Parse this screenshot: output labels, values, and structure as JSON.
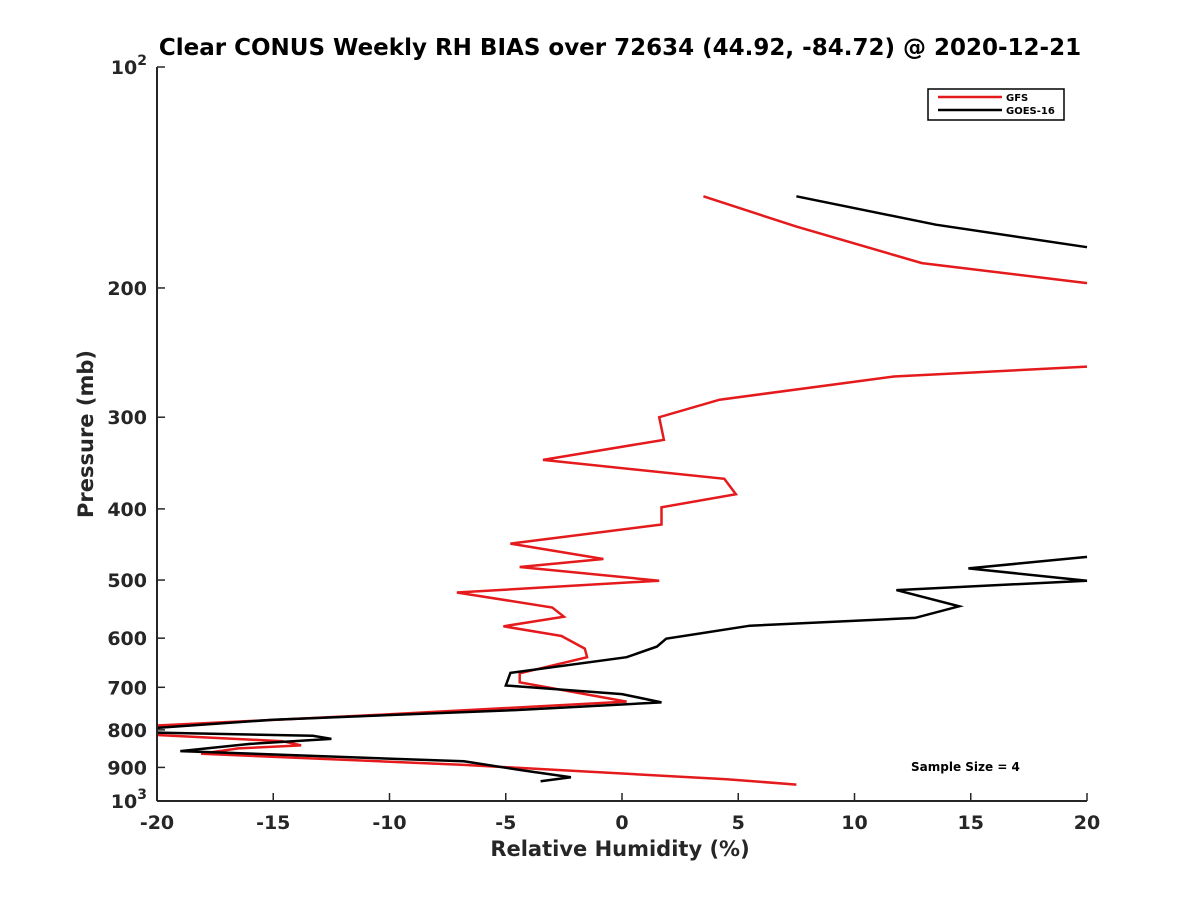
{
  "chart_data": {
    "type": "line",
    "title": "Clear CONUS Weekly RH BIAS over 72634 (44.92, -84.72) @ 2020-12-21",
    "xlabel": "Relative Humidity (%)",
    "ylabel": "Pressure (mb)",
    "xlim": [
      -20,
      20
    ],
    "ylim": [
      100,
      1000
    ],
    "yscale": "log",
    "y_reversed": true,
    "x_ticks": [
      -20,
      -15,
      -10,
      -5,
      0,
      5,
      10,
      15,
      20
    ],
    "x_tick_labels": [
      "-20",
      "-15",
      "-10",
      "-5",
      "0",
      "5",
      "10",
      "15",
      "20"
    ],
    "y_ticks": [
      100,
      200,
      300,
      400,
      500,
      600,
      700,
      800,
      900,
      1000
    ],
    "y_tick_labels": [
      {
        "base": "10",
        "exp": "2"
      },
      {
        "text": "200"
      },
      {
        "text": "300"
      },
      {
        "text": "400"
      },
      {
        "text": "500"
      },
      {
        "text": "600"
      },
      {
        "text": "700"
      },
      {
        "text": "800"
      },
      {
        "text": "900"
      },
      {
        "base": "10",
        "exp": "3"
      }
    ],
    "legend_position": "top-right",
    "annotation": "Sample Size = 4",
    "series": [
      {
        "name": "GFS",
        "color": "#e41a1c",
        "segments": [
          [
            [
              3.5,
              150
            ],
            [
              7.5,
              165
            ],
            [
              12.9,
              185
            ],
            [
              20.0,
              197
            ]
          ],
          [
            [
              20.0,
              256
            ],
            [
              11.7,
              264
            ],
            [
              4.2,
              284
            ],
            [
              1.6,
              300
            ],
            [
              1.8,
              322
            ],
            [
              -3.4,
              343
            ],
            [
              4.4,
              364
            ],
            [
              4.9,
              382
            ],
            [
              1.7,
              398
            ],
            [
              1.7,
              420
            ],
            [
              -4.8,
              446
            ],
            [
              -0.8,
              468
            ],
            [
              -4.4,
              480
            ],
            [
              1.6,
              501
            ],
            [
              -7.1,
              520
            ],
            [
              -3.0,
              545
            ],
            [
              -2.5,
              561
            ],
            [
              -5.1,
              578
            ],
            [
              -2.6,
              596
            ],
            [
              -1.6,
              620
            ],
            [
              -1.5,
              637
            ],
            [
              -4.4,
              670
            ],
            [
              -4.4,
              689
            ],
            [
              0.2,
              732
            ],
            [
              -10.1,
              762
            ],
            [
              -20.0,
              789
            ]
          ],
          [
            [
              -20.0,
              813
            ],
            [
              -14.6,
              829
            ],
            [
              -13.8,
              840
            ],
            [
              -16.5,
              848
            ],
            [
              -18.1,
              862
            ],
            [
              -6.8,
              893
            ],
            [
              4.5,
              934
            ],
            [
              7.5,
              950
            ]
          ]
        ]
      },
      {
        "name": "GOES-16",
        "color": "#000000",
        "segments": [
          [
            [
              7.5,
              150
            ],
            [
              13.5,
              164
            ],
            [
              20.0,
              176
            ]
          ],
          [
            [
              20.0,
              465
            ],
            [
              14.9,
              482
            ],
            [
              20.0,
              501
            ],
            [
              11.8,
              516
            ],
            [
              14.5,
              543
            ],
            [
              12.6,
              563
            ],
            [
              5.5,
              577
            ],
            [
              1.9,
              601
            ],
            [
              1.5,
              616
            ],
            [
              0.2,
              637
            ],
            [
              -4.8,
              669
            ],
            [
              -5.0,
              696
            ],
            [
              0.0,
              715
            ],
            [
              1.7,
              734
            ],
            [
              -4.6,
              752
            ],
            [
              -15.0,
              775
            ],
            [
              -20.0,
              795
            ]
          ],
          [
            [
              -20.0,
              807
            ],
            [
              -13.3,
              815
            ],
            [
              -12.5,
              823
            ],
            [
              -16.0,
              836
            ],
            [
              -19.0,
              855
            ],
            [
              -6.8,
              883
            ],
            [
              -4.2,
              909
            ],
            [
              -2.2,
              928
            ],
            [
              -3.5,
              940
            ]
          ]
        ]
      }
    ]
  }
}
